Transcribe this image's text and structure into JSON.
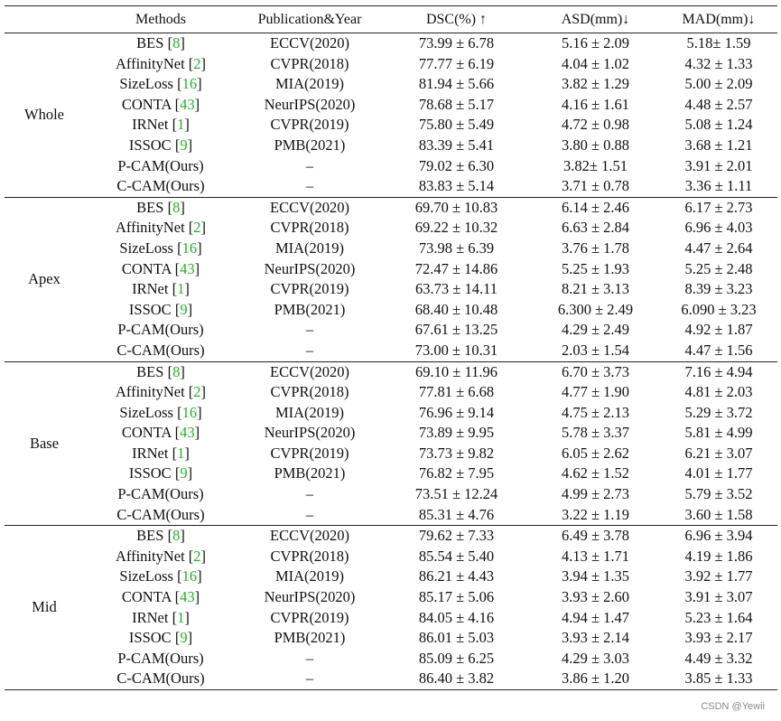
{
  "headers": {
    "methods": "Methods",
    "publication": "Publication&Year",
    "dsc": "DSC(%) ↑",
    "asd": "ASD(mm)↓",
    "mad": "MAD(mm)↓"
  },
  "groups": [
    {
      "name": "Whole",
      "rows": [
        {
          "method": "BES",
          "ref": "8",
          "pub": "ECCV(2020)",
          "dsc": "73.99 ± 6.78",
          "asd": "5.16 ± 2.09",
          "mad": "5.18± 1.59",
          "bold": []
        },
        {
          "method": "AffinityNet",
          "ref": "2",
          "pub": "CVPR(2018)",
          "dsc": "77.77 ± 6.19",
          "asd": "4.04 ± 1.02",
          "mad": "4.32 ± 1.33",
          "bold": []
        },
        {
          "method": "SizeLoss",
          "ref": "16",
          "pub": "MIA(2019)",
          "dsc": "81.94 ± 5.66",
          "asd": "3.82 ± 1.29",
          "mad": "5.00 ± 2.09",
          "bold": []
        },
        {
          "method": "CONTA",
          "ref": "43",
          "pub": "NeurIPS(2020)",
          "dsc": "78.68 ± 5.17",
          "asd": "4.16 ± 1.61",
          "mad": "4.48 ± 2.57",
          "bold": []
        },
        {
          "method": "IRNet",
          "ref": "1",
          "pub": "CVPR(2019)",
          "dsc": "75.80 ± 5.49",
          "asd": "4.72 ± 0.98",
          "mad": "5.08 ± 1.24",
          "bold": []
        },
        {
          "method": "ISSOC",
          "ref": "9",
          "pub": "PMB(2021)",
          "dsc": "83.39 ± 5.41",
          "asd": "3.80 ± 0.88",
          "mad": "3.68 ± 1.21",
          "bold": []
        },
        {
          "method": "P-CAM(Ours)",
          "ref": "",
          "pub": "–",
          "dsc": "79.02 ± 6.30",
          "asd": "3.82± 1.51",
          "mad": "3.91 ± 2.01",
          "bold": []
        },
        {
          "method": "C-CAM(Ours)",
          "ref": "",
          "pub": "–",
          "dsc": "83.83 ± 5.14",
          "asd": "3.71 ± 0.78",
          "mad": "3.36 ± 1.11",
          "bold": [
            "dsc",
            "asd",
            "mad"
          ]
        }
      ]
    },
    {
      "name": "Apex",
      "rows": [
        {
          "method": "BES",
          "ref": "8",
          "pub": "ECCV(2020)",
          "dsc": "69.70 ± 10.83",
          "asd": "6.14 ± 2.46",
          "mad": "6.17 ± 2.73",
          "bold": []
        },
        {
          "method": "AffinityNet",
          "ref": "2",
          "pub": "CVPR(2018)",
          "dsc": "69.22 ± 10.32",
          "asd": "6.63 ± 2.84",
          "mad": "6.96 ± 4.03",
          "bold": []
        },
        {
          "method": "SizeLoss",
          "ref": "16",
          "pub": "MIA(2019)",
          "dsc": "73.98 ± 6.39",
          "asd": "3.76 ± 1.78",
          "mad": "4.47 ± 2.64",
          "bold": [
            "dsc"
          ]
        },
        {
          "method": "CONTA",
          "ref": "43",
          "pub": "NeurIPS(2020)",
          "dsc": "72.47 ± 14.86",
          "asd": "5.25 ± 1.93",
          "mad": "5.25 ± 2.48",
          "bold": []
        },
        {
          "method": "IRNet",
          "ref": "1",
          "pub": "CVPR(2019)",
          "dsc": "63.73 ± 14.11",
          "asd": "8.21 ± 3.13",
          "mad": "8.39 ± 3.23",
          "bold": []
        },
        {
          "method": "ISSOC",
          "ref": "9",
          "pub": "PMB(2021)",
          "dsc": "68.40 ± 10.48",
          "asd": "6.300 ± 2.49",
          "mad": "6.090 ± 3.23",
          "bold": []
        },
        {
          "method": "P-CAM(Ours)",
          "ref": "",
          "pub": "–",
          "dsc": "67.61 ± 13.25",
          "asd": "4.29 ± 2.49",
          "mad": "4.92 ± 1.87",
          "bold": []
        },
        {
          "method": "C-CAM(Ours)",
          "ref": "",
          "pub": "–",
          "dsc": "73.00 ± 10.31",
          "asd": "2.03 ± 1.54",
          "mad": "4.47 ± 1.56",
          "bold": [
            "asd",
            "mad"
          ]
        }
      ]
    },
    {
      "name": "Base",
      "rows": [
        {
          "method": "BES",
          "ref": "8",
          "pub": "ECCV(2020)",
          "dsc": "69.10 ± 11.96",
          "asd": "6.70 ± 3.73",
          "mad": "7.16 ± 4.94",
          "bold": []
        },
        {
          "method": "AffinityNet",
          "ref": "2",
          "pub": "CVPR(2018)",
          "dsc": "77.81 ± 6.68",
          "asd": "4.77 ± 1.90",
          "mad": "4.81 ± 2.03",
          "bold": []
        },
        {
          "method": "SizeLoss",
          "ref": "16",
          "pub": "MIA(2019)",
          "dsc": "76.96 ± 9.14",
          "asd": "4.75 ± 2.13",
          "mad": "5.29 ± 3.72",
          "bold": []
        },
        {
          "method": "CONTA",
          "ref": "43",
          "pub": "NeurIPS(2020)",
          "dsc": "73.89 ± 9.95",
          "asd": "5.78 ± 3.37",
          "mad": "5.81 ± 4.99",
          "bold": []
        },
        {
          "method": "IRNet",
          "ref": "1",
          "pub": "CVPR(2019)",
          "dsc": "73.73 ± 9.82",
          "asd": "6.05 ± 2.62",
          "mad": "6.21 ± 3.07",
          "bold": []
        },
        {
          "method": "ISSOC",
          "ref": "9",
          "pub": "PMB(2021)",
          "dsc": "76.82 ± 7.95",
          "asd": "4.62 ± 1.52",
          "mad": "4.01 ± 1.77",
          "bold": []
        },
        {
          "method": "P-CAM(Ours)",
          "ref": "",
          "pub": "–",
          "dsc": "73.51 ± 12.24",
          "asd": "4.99 ± 2.73",
          "mad": "5.79 ± 3.52",
          "bold": []
        },
        {
          "method": "C-CAM(Ours)",
          "ref": "",
          "pub": "–",
          "dsc": "85.31 ± 4.76",
          "asd": "3.22 ± 1.19",
          "mad": "3.60 ± 1.58",
          "bold": [
            "dsc",
            "asd",
            "mad"
          ]
        }
      ]
    },
    {
      "name": "Mid",
      "rows": [
        {
          "method": "BES",
          "ref": "8",
          "pub": "ECCV(2020)",
          "dsc": "79.62 ± 7.33",
          "asd": "6.49 ± 3.78",
          "mad": "6.96 ± 3.94",
          "bold": []
        },
        {
          "method": "AffinityNet",
          "ref": "2",
          "pub": "CVPR(2018)",
          "dsc": "85.54 ± 5.40",
          "asd": "4.13 ± 1.71",
          "mad": "4.19 ± 1.86",
          "bold": []
        },
        {
          "method": "SizeLoss",
          "ref": "16",
          "pub": "MIA(2019)",
          "dsc": "86.21 ± 4.43",
          "asd": "3.94 ± 1.35",
          "mad": "3.92 ± 1.77",
          "bold": []
        },
        {
          "method": "CONTA",
          "ref": "43",
          "pub": "NeurIPS(2020)",
          "dsc": "85.17 ± 5.06",
          "asd": "3.93 ± 2.60",
          "mad": "3.91 ± 3.07",
          "bold": []
        },
        {
          "method": "IRNet",
          "ref": "1",
          "pub": "CVPR(2019)",
          "dsc": "84.05 ± 4.16",
          "asd": "4.94 ± 1.47",
          "mad": "5.23 ± 1.64",
          "bold": []
        },
        {
          "method": "ISSOC",
          "ref": "9",
          "pub": "PMB(2021)",
          "dsc": "86.01 ± 5.03",
          "asd": "3.93 ± 2.14",
          "mad": "3.93 ± 2.17",
          "bold": []
        },
        {
          "method": "P-CAM(Ours)",
          "ref": "",
          "pub": "–",
          "dsc": "85.09 ± 6.25",
          "asd": "4.29 ± 3.03",
          "mad": "4.49 ± 3.32",
          "bold": []
        },
        {
          "method": "C-CAM(Ours)",
          "ref": "",
          "pub": "–",
          "dsc": "86.40 ± 3.82",
          "asd": "3.86 ± 1.20",
          "mad": "3.85 ± 1.33",
          "bold": [
            "dsc",
            "asd",
            "mad"
          ]
        }
      ]
    }
  ],
  "watermark": "CSDN @Yewii",
  "colors": {
    "reference_link": "#22b422",
    "rule": "#222222"
  }
}
